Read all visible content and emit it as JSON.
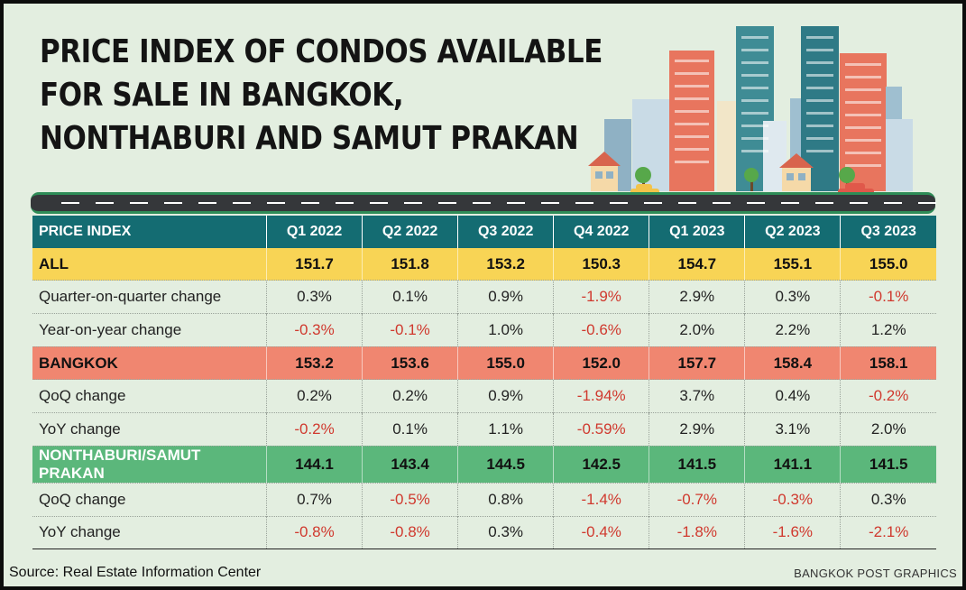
{
  "chart_data": {
    "type": "table",
    "title_lines": [
      "PRICE INDEX OF CONDOS AVAILABLE",
      "FOR SALE IN BANGKOK,",
      "NONTHABURI AND SAMUT PRAKAN"
    ],
    "header": [
      "PRICE INDEX",
      "Q1 2022",
      "Q2 2022",
      "Q3 2022",
      "Q4 2022",
      "Q1 2023",
      "Q2 2023",
      "Q3 2023"
    ],
    "rows": [
      {
        "label": "ALL",
        "type": "all",
        "values": [
          "151.7",
          "151.8",
          "153.2",
          "150.3",
          "154.7",
          "155.1",
          "155.0"
        ]
      },
      {
        "label": "Quarter-on-quarter change",
        "type": "sub",
        "values": [
          "0.3%",
          "0.1%",
          "0.9%",
          "-1.9%",
          "2.9%",
          "0.3%",
          "-0.1%"
        ]
      },
      {
        "label": "Year-on-year change",
        "type": "sub",
        "values": [
          "-0.3%",
          "-0.1%",
          "1.0%",
          "-0.6%",
          "2.0%",
          "2.2%",
          "1.2%"
        ]
      },
      {
        "label": "BANGKOK",
        "type": "bkk",
        "values": [
          "153.2",
          "153.6",
          "155.0",
          "152.0",
          "157.7",
          "158.4",
          "158.1"
        ]
      },
      {
        "label": "QoQ change",
        "type": "sub",
        "values": [
          "0.2%",
          "0.2%",
          "0.9%",
          "-1.94%",
          "3.7%",
          "0.4%",
          "-0.2%"
        ]
      },
      {
        "label": "YoY change",
        "type": "sub",
        "values": [
          "-0.2%",
          "0.1%",
          "1.1%",
          "-0.59%",
          "2.9%",
          "3.1%",
          "2.0%"
        ]
      },
      {
        "label": "NONTHABURI/SAMUT PRAKAN",
        "type": "non",
        "values": [
          "144.1",
          "143.4",
          "144.5",
          "142.5",
          "141.5",
          "141.1",
          "141.5"
        ]
      },
      {
        "label": "QoQ change",
        "type": "sub",
        "values": [
          "0.7%",
          "-0.5%",
          "0.8%",
          "-1.4%",
          "-0.7%",
          "-0.3%",
          "0.3%"
        ]
      },
      {
        "label": "YoY change",
        "type": "sub",
        "values": [
          "-0.8%",
          "-0.8%",
          "0.3%",
          "-0.4%",
          "-1.8%",
          "-1.6%",
          "-2.1%"
        ]
      }
    ],
    "colors": {
      "header_bg": "#146c72",
      "all_row_bg": "#f8d455",
      "bangkok_row_bg": "#f08670",
      "nonthaburi_row_bg": "#5bb77b",
      "negative_text": "#d0392e",
      "background": "#e3eee0"
    }
  },
  "footer": {
    "source": "Source: Real Estate Information Center",
    "credit": "BANGKOK POST GRAPHICS"
  },
  "illustration": {
    "icon": "city-skyline-icon"
  }
}
